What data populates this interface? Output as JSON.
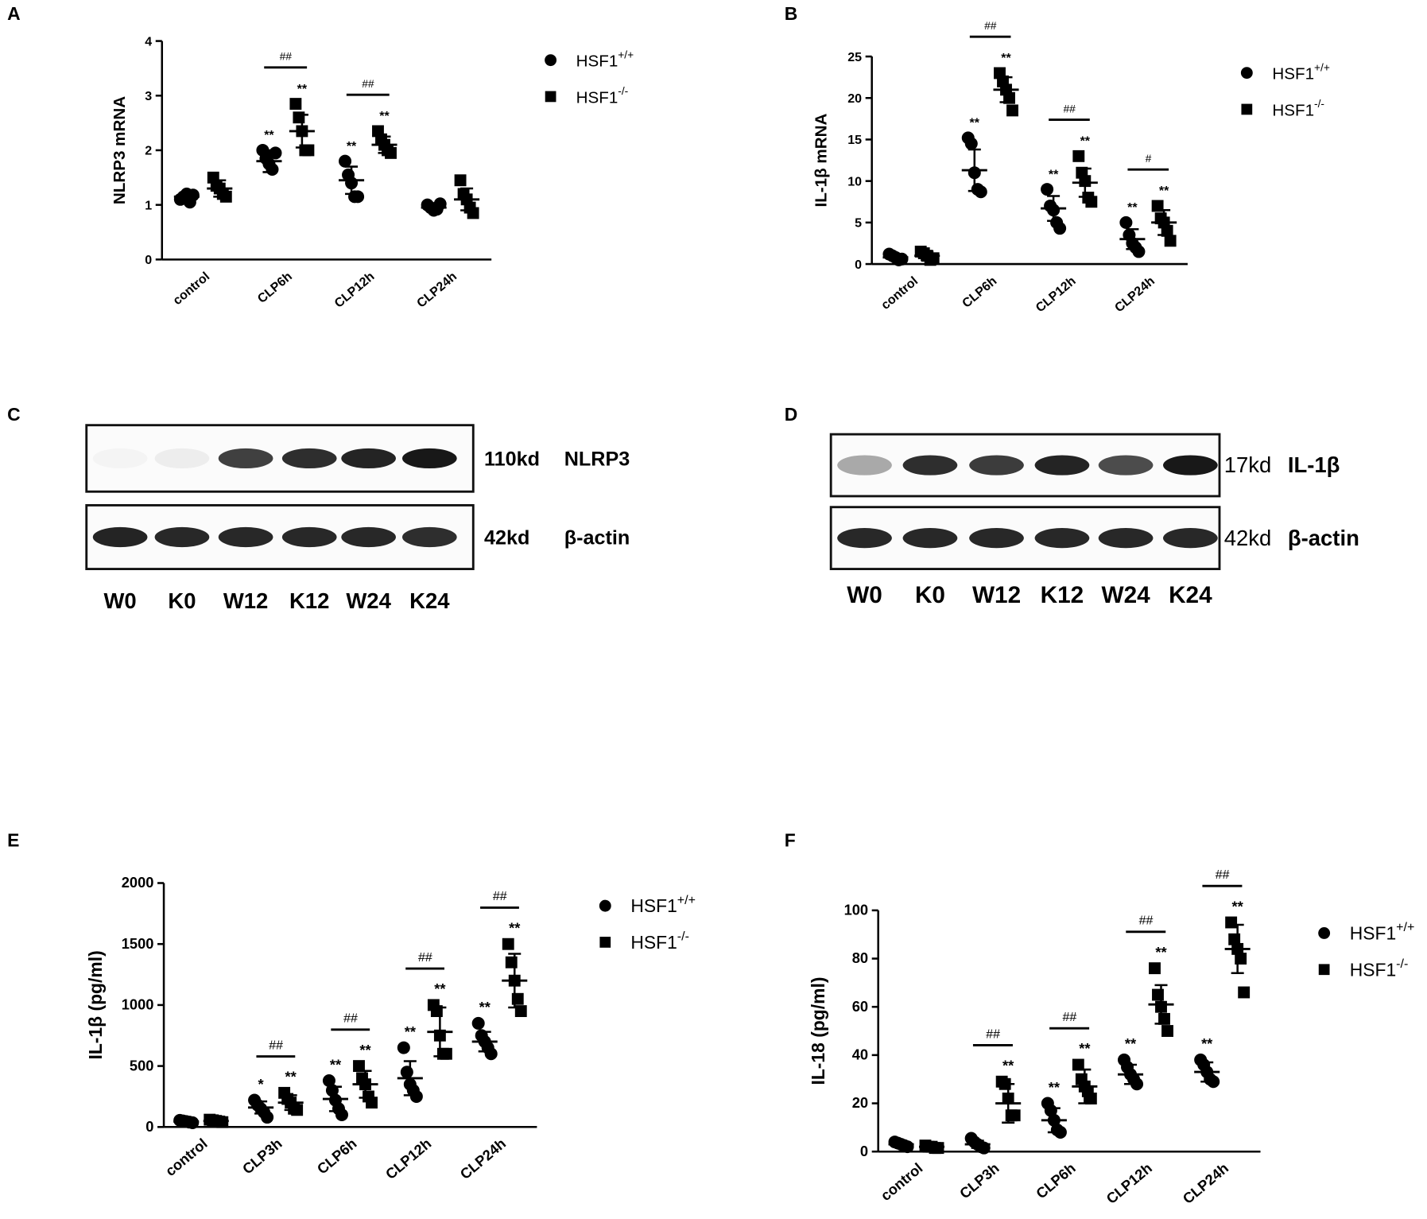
{
  "chart_data": [
    {
      "type": "dot",
      "panel_label": "A",
      "ylabel": "NLRP3 mRNA",
      "categories": [
        "control",
        "CLP6h",
        "CLP12h",
        "CLP24h"
      ],
      "ylim": [
        0,
        4
      ],
      "yticks": [
        0,
        1,
        2,
        3,
        4
      ],
      "comparisons": [
        null,
        "##",
        "##",
        null
      ],
      "series": [
        {
          "name": "HSF1",
          "superscript": "+/+",
          "marker": "circle",
          "color": "#000000",
          "means": [
            1.15,
            1.8,
            1.45,
            0.95
          ],
          "sds": [
            0.08,
            0.2,
            0.25,
            0.05
          ],
          "stars": [
            null,
            "**",
            "**",
            null
          ],
          "points": [
            [
              1.1,
              1.15,
              1.2,
              1.05,
              1.18
            ],
            [
              2.0,
              1.85,
              1.75,
              1.65,
              1.95
            ],
            [
              1.8,
              1.55,
              1.4,
              1.15,
              1.15
            ],
            [
              1.0,
              0.95,
              0.9,
              0.92,
              1.02
            ]
          ]
        },
        {
          "name": "HSF1",
          "superscript": "-/-",
          "marker": "square",
          "color": "#000000",
          "means": [
            1.3,
            2.35,
            2.1,
            1.1
          ],
          "sds": [
            0.15,
            0.3,
            0.15,
            0.2
          ],
          "stars": [
            null,
            "**",
            "**",
            null
          ],
          "points": [
            [
              1.5,
              1.35,
              1.3,
              1.2,
              1.15
            ],
            [
              2.85,
              2.6,
              2.35,
              2.0,
              2.0
            ],
            [
              2.35,
              2.2,
              2.1,
              2.0,
              1.95
            ],
            [
              1.45,
              1.2,
              1.1,
              0.95,
              0.85
            ]
          ]
        }
      ]
    },
    {
      "type": "dot",
      "panel_label": "B",
      "ylabel": "IL-1β mRNA",
      "categories": [
        "control",
        "CLP6h",
        "CLP12h",
        "CLP24h"
      ],
      "ylim": [
        0,
        25
      ],
      "yticks": [
        0,
        5,
        10,
        15,
        20,
        25
      ],
      "comparisons": [
        null,
        "##",
        "##",
        "#"
      ],
      "series": [
        {
          "name": "HSF1",
          "superscript": "+/+",
          "marker": "circle",
          "color": "#000000",
          "means": [
            0.8,
            11.3,
            6.7,
            3
          ],
          "sds": [
            0.3,
            2.5,
            1.5,
            1.2
          ],
          "stars": [
            null,
            "**",
            "**",
            "**"
          ],
          "points": [
            [
              1.2,
              1.0,
              0.8,
              0.5,
              0.6
            ],
            [
              15.2,
              14.5,
              11,
              9,
              8.7
            ],
            [
              9,
              7,
              6.5,
              5,
              4.3
            ],
            [
              5,
              3.5,
              2.5,
              2,
              1.5
            ]
          ]
        },
        {
          "name": "HSF1",
          "superscript": "-/-",
          "marker": "square",
          "color": "#000000",
          "means": [
            1.0,
            21,
            9.8,
            5
          ],
          "sds": [
            0.5,
            1.5,
            1.7,
            1.5
          ],
          "stars": [
            null,
            "**",
            "**",
            "**"
          ],
          "points": [
            [
              1.5,
              1.3,
              1.0,
              0.5,
              0.7
            ],
            [
              23,
              22,
              21,
              20,
              18.5
            ],
            [
              13,
              11,
              10,
              8,
              7.5
            ],
            [
              7,
              5.5,
              5,
              4,
              2.8
            ]
          ]
        }
      ]
    },
    {
      "type": "dot",
      "panel_label": "E",
      "ylabel": "IL-1β (pg/ml)",
      "categories": [
        "control",
        "CLP3h",
        "CLP6h",
        "CLP12h",
        "CLP24h"
      ],
      "ylim": [
        0,
        2000
      ],
      "yticks": [
        0,
        500,
        1000,
        1500,
        2000
      ],
      "comparisons": [
        null,
        "##",
        "##",
        "##",
        "##"
      ],
      "series": [
        {
          "name": "HSF1",
          "superscript": "+/+",
          "marker": "circle",
          "color": "#000000",
          "means": [
            45,
            160,
            230,
            400,
            700
          ],
          "sds": [
            10,
            50,
            100,
            140,
            80
          ],
          "stars": [
            null,
            "*",
            "**",
            "**",
            "**"
          ],
          "points": [
            [
              55,
              50,
              45,
              40,
              35
            ],
            [
              220,
              180,
              150,
              120,
              80
            ],
            [
              380,
              300,
              220,
              150,
              100
            ],
            [
              650,
              450,
              350,
              300,
              250
            ],
            [
              850,
              750,
              700,
              650,
              600
            ]
          ]
        },
        {
          "name": "HSF1",
          "superscript": "-/-",
          "marker": "square",
          "color": "#000000",
          "means": [
            50,
            200,
            350,
            780,
            1200
          ],
          "sds": [
            10,
            60,
            110,
            200,
            220
          ],
          "stars": [
            null,
            "**",
            "**",
            "**",
            "**"
          ],
          "points": [
            [
              60,
              55,
              50,
              45,
              40
            ],
            [
              280,
              230,
              200,
              150,
              140
            ],
            [
              500,
              400,
              350,
              250,
              200
            ],
            [
              1000,
              950,
              750,
              600,
              600
            ],
            [
              1500,
              1350,
              1200,
              1050,
              950
            ]
          ]
        }
      ]
    },
    {
      "type": "dot",
      "panel_label": "F",
      "ylabel": "IL-18 (pg/ml)",
      "categories": [
        "control",
        "CLP3h",
        "CLP6h",
        "CLP12h",
        "CLP24h"
      ],
      "ylim": [
        0,
        100
      ],
      "yticks": [
        0,
        20,
        40,
        60,
        80,
        100
      ],
      "comparisons": [
        null,
        "##",
        "##",
        "##",
        "##"
      ],
      "series": [
        {
          "name": "HSF1",
          "superscript": "+/+",
          "marker": "circle",
          "color": "#000000",
          "means": [
            3,
            3,
            13,
            32,
            33
          ],
          "sds": [
            1,
            1.5,
            5,
            4,
            4
          ],
          "stars": [
            null,
            null,
            "**",
            "**",
            "**"
          ],
          "points": [
            [
              4,
              3.5,
              3,
              2.5,
              2
            ],
            [
              5.5,
              4,
              3,
              2,
              1.5
            ],
            [
              20,
              17,
              13,
              9,
              8
            ],
            [
              38,
              35,
              32,
              30,
              28
            ],
            [
              38,
              36,
              33,
              30,
              29
            ]
          ]
        },
        {
          "name": "HSF1",
          "superscript": "-/-",
          "marker": "square",
          "color": "#000000",
          "means": [
            2,
            20,
            27,
            61,
            84
          ],
          "sds": [
            0.5,
            8,
            7,
            8,
            10
          ],
          "stars": [
            null,
            "**",
            "**",
            "**",
            "**"
          ],
          "points": [
            [
              2.5,
              2,
              2,
              1.5,
              1.5
            ],
            [
              29,
              28,
              22,
              15,
              15
            ],
            [
              36,
              30,
              27,
              25,
              22
            ],
            [
              76,
              65,
              60,
              55,
              50
            ],
            [
              95,
              88,
              84,
              80,
              66
            ]
          ]
        }
      ]
    }
  ],
  "blots": [
    {
      "panel_label": "C",
      "lanes": [
        "W0",
        "K0",
        "W12",
        "K12",
        "W24",
        "K24"
      ],
      "rows": [
        {
          "size": "110kd",
          "protein": "NLRP3"
        },
        {
          "size": "42kd",
          "protein": "β-actin"
        }
      ]
    },
    {
      "panel_label": "D",
      "lanes": [
        "W0",
        "K0",
        "W12",
        "K12",
        "W24",
        "K24"
      ],
      "rows": [
        {
          "size": "17kd",
          "protein": "IL-1β"
        },
        {
          "size": "42kd",
          "protein": "β-actin"
        }
      ]
    }
  ]
}
